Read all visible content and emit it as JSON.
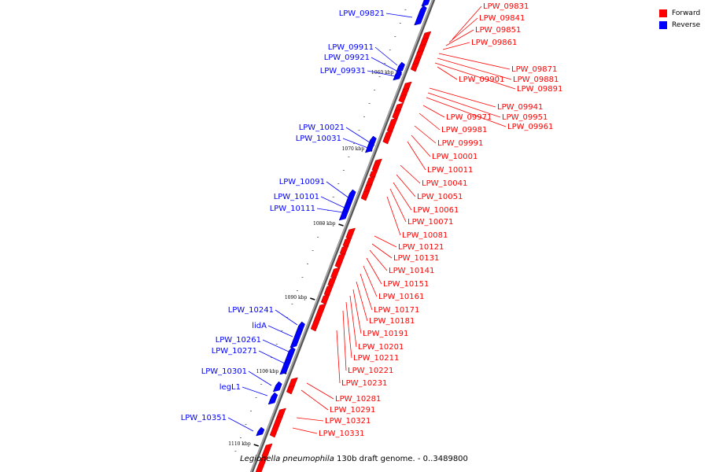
{
  "colors": {
    "forward": "#ff0000",
    "reverse": "#0000ff",
    "backbone": "#888888"
  },
  "legend": [
    {
      "label": "Forward",
      "color": "#ff0000"
    },
    {
      "label": "Reverse",
      "color": "#0000ff"
    }
  ],
  "footer": {
    "organism": "Legionella pneumophila",
    "rest": " 130b draft genome. - 0..3489800"
  },
  "ticks": [
    "1060 kbp",
    "1070 kbp",
    "1080 kbp",
    "1090 kbp",
    "1100 kbp",
    "1110 kbp"
  ],
  "forward_labels": [
    "LPW_09831",
    "LPW_09841",
    "LPW_09851",
    "LPW_09861",
    "LPW_09871",
    "LPW_09881",
    "LPW_09891",
    "LPW_09901",
    "LPW_09941",
    "LPW_09951",
    "LPW_09961",
    "LPW_09971",
    "LPW_09981",
    "LPW_09991",
    "LPW_10001",
    "LPW_10011",
    "LPW_10041",
    "LPW_10051",
    "LPW_10061",
    "LPW_10071",
    "LPW_10081",
    "LPW_10121",
    "LPW_10131",
    "LPW_10141",
    "LPW_10151",
    "LPW_10161",
    "LPW_10171",
    "LPW_10181",
    "LPW_10191",
    "LPW_10201",
    "LPW_10211",
    "LPW_10221",
    "LPW_10231",
    "LPW_10281",
    "LPW_10291",
    "LPW_10321",
    "LPW_10331"
  ],
  "reverse_labels": [
    "LPW_09821",
    "LPW_09911",
    "LPW_09921",
    "LPW_09931",
    "LPW_10021",
    "LPW_10031",
    "LPW_10091",
    "LPW_10101",
    "LPW_10111",
    "LPW_10241",
    "lidA",
    "LPW_10261",
    "LPW_10271",
    "LPW_10301",
    "legL1",
    "LPW_10351"
  ]
}
